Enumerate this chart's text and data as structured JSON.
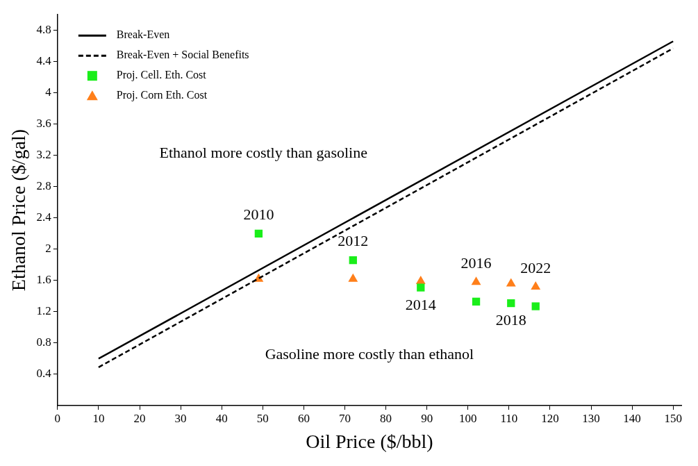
{
  "chart_data": {
    "type": "scatter",
    "xlabel": "Oil Price ($/bbl)",
    "ylabel": "Ethanol Price ($/gal)",
    "xlim": [
      0,
      152
    ],
    "ylim": [
      0,
      5.0
    ],
    "xticks": [
      0,
      10,
      20,
      30,
      40,
      50,
      60,
      70,
      80,
      90,
      100,
      110,
      120,
      130,
      140,
      150
    ],
    "yticks": [
      0.4,
      0.8,
      1.2,
      1.6,
      2,
      2.4,
      2.8,
      3.2,
      3.6,
      4,
      4.4,
      4.8
    ],
    "grid": false,
    "legend": "top left",
    "series": [
      {
        "name": "Break-Even",
        "type": "line",
        "line_style": "solid",
        "marker": "none",
        "color": "#000000",
        "x": [
          10,
          150
        ],
        "values": [
          0.6,
          4.66
        ]
      },
      {
        "name": "Break-Even + Social Benefits",
        "type": "line",
        "line_style": "dashed",
        "marker": "none",
        "color": "#000000",
        "x": [
          10,
          150
        ],
        "values": [
          0.49,
          4.57
        ]
      },
      {
        "name": "Proj. Cell. Eth. Cost",
        "type": "scatter",
        "marker": "square",
        "color": "#1aee1a",
        "x": [
          49,
          72,
          88.5,
          102,
          110.5,
          116.5
        ],
        "values": [
          2.2,
          1.86,
          1.51,
          1.33,
          1.31,
          1.27
        ]
      },
      {
        "name": "Proj. Corn Eth. Cost",
        "type": "scatter",
        "marker": "triangle",
        "color": "#ff7f1a",
        "x": [
          49,
          72,
          88.5,
          102,
          110.5,
          116.5
        ],
        "values": [
          1.62,
          1.62,
          1.59,
          1.58,
          1.56,
          1.52
        ]
      }
    ],
    "annotations": [
      {
        "text": "2010",
        "x": 49,
        "y": 2.2
      },
      {
        "text": "2012",
        "x": 72,
        "y": 1.86
      },
      {
        "text": "2014",
        "x": 88.5,
        "y": 1.51
      },
      {
        "text": "2016",
        "x": 102,
        "y": 1.58
      },
      {
        "text": "2018",
        "x": 110.5,
        "y": 1.31
      },
      {
        "text": "2022",
        "x": 116.5,
        "y": 1.52
      },
      "Ethanol more costly than gasoline",
      "Gasoline more costly than ethanol"
    ]
  }
}
